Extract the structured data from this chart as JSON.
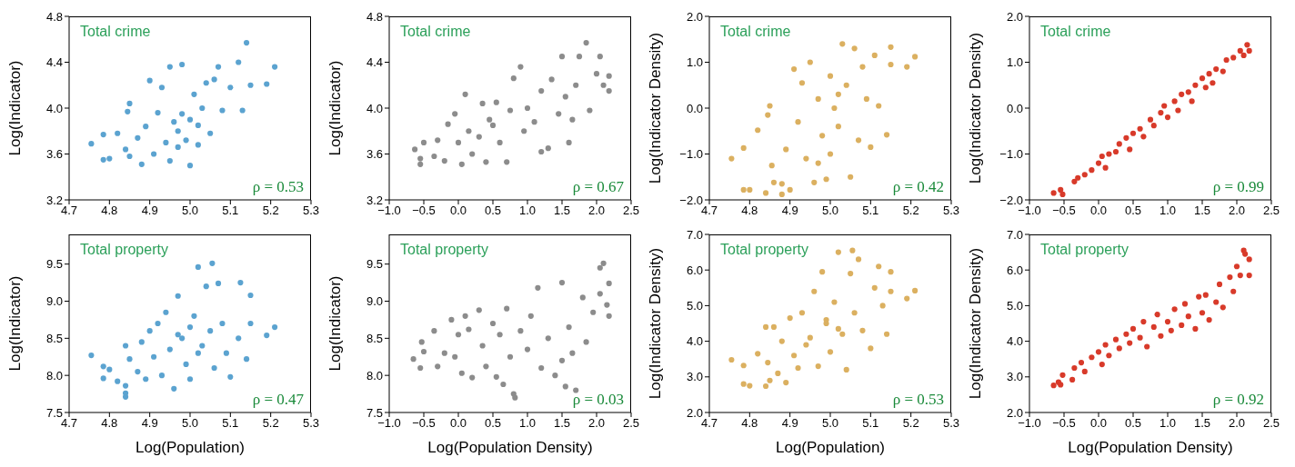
{
  "chart_data": [
    {
      "type": "scatter",
      "ylabel": "Log(Indicator)",
      "annotations": [
        "Total crime",
        "ρ = 0.53"
      ],
      "marker": "circle",
      "xlim": [
        4.7,
        5.3
      ],
      "xticks": [
        {
          "value": 4.7,
          "label": "4.7"
        },
        {
          "value": 4.8,
          "label": "4.8"
        },
        {
          "value": 4.9,
          "label": "4.9"
        },
        {
          "value": 5.0,
          "label": "5.0"
        },
        {
          "value": 5.1,
          "label": "5.1"
        },
        {
          "value": 5.2,
          "label": "5.2"
        },
        {
          "value": 5.3,
          "label": "5.3"
        }
      ],
      "ylim": [
        3.2,
        4.8
      ],
      "yticks": [
        {
          "value": 3.2,
          "label": "3.2"
        },
        {
          "value": 3.6,
          "label": "3.6"
        },
        {
          "value": 4.0,
          "label": "4.0"
        },
        {
          "value": 4.4,
          "label": "4.4"
        },
        {
          "value": 4.8,
          "label": "4.8"
        }
      ],
      "series": [
        {
          "color": "#5ba3d0",
          "x": [
            4.755,
            4.785,
            4.785,
            4.8,
            4.82,
            4.84,
            4.845,
            4.85,
            4.85,
            4.87,
            4.88,
            4.89,
            4.9,
            4.91,
            4.92,
            4.93,
            4.94,
            4.95,
            4.95,
            4.96,
            4.97,
            4.98,
            4.98,
            4.99,
            5.0,
            5.0,
            5.01,
            5.02,
            5.03,
            5.04,
            5.05,
            5.06,
            5.07,
            5.08,
            5.1,
            5.12,
            5.14,
            5.15,
            5.19,
            5.21,
            5.13,
            4.97,
            5.02
          ],
          "values": [
            3.69,
            3.77,
            3.55,
            3.56,
            3.78,
            3.64,
            3.97,
            4.04,
            3.58,
            3.74,
            3.51,
            3.84,
            4.24,
            3.6,
            3.96,
            4.18,
            3.7,
            3.54,
            4.36,
            3.88,
            3.8,
            3.95,
            4.38,
            3.72,
            3.5,
            3.9,
            4.12,
            3.85,
            4.0,
            4.22,
            3.78,
            4.25,
            4.36,
            3.98,
            4.18,
            4.4,
            4.57,
            4.2,
            4.21,
            4.36,
            3.98,
            3.66,
            3.68
          ]
        }
      ]
    },
    {
      "type": "scatter",
      "ylabel": "Log(Indicator)",
      "annotations": [
        "Total crime",
        "ρ = 0.67"
      ],
      "marker": "circle",
      "xlim": [
        -1.0,
        2.5
      ],
      "xticks": [
        {
          "value": -1.0,
          "label": "−1.0"
        },
        {
          "value": -0.5,
          "label": "−0.5"
        },
        {
          "value": 0.0,
          "label": "0.0"
        },
        {
          "value": 0.5,
          "label": "0.5"
        },
        {
          "value": 1.0,
          "label": "1.0"
        },
        {
          "value": 1.5,
          "label": "1.5"
        },
        {
          "value": 2.0,
          "label": "2.0"
        },
        {
          "value": 2.5,
          "label": "2.5"
        }
      ],
      "ylim": [
        3.2,
        4.8
      ],
      "yticks": [
        {
          "value": 3.2,
          "label": "3.2"
        },
        {
          "value": 3.6,
          "label": "3.6"
        },
        {
          "value": 4.0,
          "label": "4.0"
        },
        {
          "value": 4.4,
          "label": "4.4"
        },
        {
          "value": 4.8,
          "label": "4.8"
        }
      ],
      "series": [
        {
          "color": "#8c8c8c",
          "x": [
            -0.63,
            -0.55,
            -0.55,
            -0.5,
            -0.35,
            -0.3,
            -0.2,
            -0.15,
            -0.05,
            0.0,
            0.05,
            0.1,
            0.15,
            0.2,
            0.3,
            0.35,
            0.4,
            0.5,
            0.55,
            0.6,
            0.7,
            0.75,
            0.8,
            0.9,
            0.95,
            1.0,
            1.1,
            1.2,
            1.3,
            1.35,
            1.45,
            1.5,
            1.55,
            1.6,
            1.65,
            1.7,
            1.75,
            1.85,
            1.9,
            2.0,
            2.05,
            2.1,
            2.18,
            2.18,
            1.2,
            0.45
          ],
          "values": [
            3.64,
            3.51,
            3.56,
            3.7,
            3.58,
            3.72,
            3.54,
            3.86,
            3.95,
            3.7,
            3.51,
            4.12,
            3.8,
            3.6,
            3.75,
            4.04,
            3.53,
            3.85,
            4.05,
            3.7,
            3.53,
            3.98,
            4.26,
            4.36,
            3.8,
            4.0,
            3.88,
            4.15,
            3.65,
            4.25,
            3.95,
            4.45,
            4.1,
            3.7,
            3.9,
            4.2,
            4.45,
            4.57,
            3.98,
            4.3,
            4.45,
            4.2,
            4.28,
            4.15,
            3.62,
            3.9
          ]
        }
      ]
    },
    {
      "type": "scatter",
      "ylabel": "Log(Indicator Density)",
      "annotations": [
        "Total crime",
        "ρ = 0.42"
      ],
      "marker": "circle",
      "xlim": [
        4.7,
        5.3
      ],
      "xticks": [
        {
          "value": 4.7,
          "label": "4.7"
        },
        {
          "value": 4.8,
          "label": "4.8"
        },
        {
          "value": 4.9,
          "label": "4.9"
        },
        {
          "value": 5.0,
          "label": "5.0"
        },
        {
          "value": 5.1,
          "label": "5.1"
        },
        {
          "value": 5.2,
          "label": "5.2"
        },
        {
          "value": 5.3,
          "label": "5.3"
        }
      ],
      "ylim": [
        -2.0,
        2.0
      ],
      "yticks": [
        {
          "value": -2.0,
          "label": "−2.0"
        },
        {
          "value": -1.0,
          "label": "−1.0"
        },
        {
          "value": 0.0,
          "label": "0.0"
        },
        {
          "value": 1.0,
          "label": "1.0"
        },
        {
          "value": 2.0,
          "label": "2.0"
        }
      ],
      "series": [
        {
          "color": "#dbb060",
          "x": [
            4.755,
            4.785,
            4.785,
            4.8,
            4.82,
            4.84,
            4.845,
            4.85,
            4.855,
            4.86,
            4.88,
            4.88,
            4.89,
            4.9,
            4.91,
            4.92,
            4.93,
            4.94,
            4.95,
            4.96,
            4.97,
            4.98,
            4.99,
            5.0,
            5.0,
            5.01,
            5.02,
            5.03,
            5.04,
            5.05,
            5.06,
            5.07,
            5.08,
            5.09,
            5.1,
            5.11,
            5.12,
            5.14,
            5.15,
            5.15,
            5.19,
            5.21,
            4.97,
            5.02
          ],
          "values": [
            -1.1,
            -0.87,
            -1.78,
            -1.78,
            -0.48,
            -1.85,
            -0.15,
            0.05,
            -1.25,
            -1.62,
            -1.65,
            -1.88,
            -0.9,
            -1.78,
            0.85,
            -0.3,
            0.55,
            -1.1,
            1.0,
            -1.62,
            0.2,
            -0.6,
            -1.55,
            0.7,
            -1.0,
            0.0,
            -0.4,
            1.4,
            0.5,
            -1.5,
            1.3,
            -0.7,
            0.9,
            0.2,
            -0.85,
            1.15,
            0.05,
            -0.58,
            1.33,
            0.95,
            0.9,
            1.12,
            -1.2,
            0.3
          ]
        }
      ]
    },
    {
      "type": "scatter",
      "ylabel": "Log(Indicator Density)",
      "annotations": [
        "Total crime",
        "ρ = 0.99"
      ],
      "marker": "circle",
      "xlim": [
        -1.0,
        2.5
      ],
      "xticks": [
        {
          "value": -1.0,
          "label": "−1.0"
        },
        {
          "value": -0.5,
          "label": "−0.5"
        },
        {
          "value": 0.0,
          "label": "0.0"
        },
        {
          "value": 0.5,
          "label": "0.5"
        },
        {
          "value": 1.0,
          "label": "1.0"
        },
        {
          "value": 1.5,
          "label": "1.5"
        },
        {
          "value": 2.0,
          "label": "2.0"
        },
        {
          "value": 2.5,
          "label": "2.5"
        }
      ],
      "ylim": [
        -2.0,
        2.0
      ],
      "yticks": [
        {
          "value": -2.0,
          "label": "−2.0"
        },
        {
          "value": -1.0,
          "label": "−1.0"
        },
        {
          "value": 0.0,
          "label": "0.0"
        },
        {
          "value": 1.0,
          "label": "1.0"
        },
        {
          "value": 2.0,
          "label": "2.0"
        }
      ],
      "series": [
        {
          "color": "#d83a2a",
          "x": [
            -0.65,
            -0.55,
            -0.52,
            -0.35,
            -0.3,
            -0.2,
            -0.1,
            0.0,
            0.05,
            0.1,
            0.15,
            0.25,
            0.3,
            0.4,
            0.45,
            0.5,
            0.6,
            0.65,
            0.75,
            0.8,
            0.9,
            0.95,
            1.0,
            1.1,
            1.15,
            1.2,
            1.3,
            1.35,
            1.4,
            1.5,
            1.55,
            1.6,
            1.65,
            1.7,
            1.8,
            1.85,
            1.95,
            2.05,
            2.1,
            2.15,
            2.18
          ],
          "values": [
            -1.85,
            -1.78,
            -1.88,
            -1.6,
            -1.52,
            -1.45,
            -1.35,
            -1.2,
            -1.05,
            -1.3,
            -1.0,
            -0.95,
            -0.78,
            -0.65,
            -0.9,
            -0.55,
            -0.45,
            -0.62,
            -0.25,
            -0.38,
            -0.1,
            0.05,
            -0.2,
            0.15,
            -0.05,
            0.3,
            0.35,
            0.15,
            0.5,
            0.65,
            0.45,
            0.75,
            0.55,
            0.85,
            0.8,
            1.05,
            1.1,
            1.25,
            1.15,
            1.38,
            1.25
          ]
        }
      ]
    },
    {
      "type": "scatter",
      "xlabel": "Log(Population)",
      "ylabel": "Log(Indicator)",
      "annotations": [
        "Total property",
        "ρ = 0.47"
      ],
      "marker": "circle",
      "xlim": [
        4.7,
        5.3
      ],
      "xticks": [
        {
          "value": 4.7,
          "label": "4.7"
        },
        {
          "value": 4.8,
          "label": "4.8"
        },
        {
          "value": 4.9,
          "label": "4.9"
        },
        {
          "value": 5.0,
          "label": "5.0"
        },
        {
          "value": 5.1,
          "label": "5.1"
        },
        {
          "value": 5.2,
          "label": "5.2"
        },
        {
          "value": 5.3,
          "label": "5.3"
        }
      ],
      "ylim": [
        7.5,
        9.9
      ],
      "yticks": [
        {
          "value": 7.5,
          "label": "7.5"
        },
        {
          "value": 8.0,
          "label": "8.0"
        },
        {
          "value": 8.5,
          "label": "8.5"
        },
        {
          "value": 9.0,
          "label": "9.0"
        },
        {
          "value": 9.5,
          "label": "9.5"
        }
      ],
      "series": [
        {
          "color": "#5ba3d0",
          "x": [
            4.755,
            4.785,
            4.785,
            4.8,
            4.82,
            4.84,
            4.84,
            4.84,
            4.84,
            4.85,
            4.87,
            4.88,
            4.89,
            4.9,
            4.91,
            4.92,
            4.93,
            4.94,
            4.95,
            4.96,
            4.97,
            4.98,
            4.99,
            5.0,
            5.0,
            5.01,
            5.02,
            5.03,
            5.04,
            5.05,
            5.055,
            5.06,
            5.07,
            5.08,
            5.09,
            5.1,
            5.12,
            5.125,
            5.14,
            5.15,
            5.15,
            5.19,
            5.21,
            4.97,
            5.02
          ],
          "values": [
            8.27,
            8.12,
            7.96,
            8.08,
            7.92,
            8.4,
            7.86,
            7.71,
            7.76,
            8.22,
            8.05,
            8.45,
            7.95,
            8.6,
            8.25,
            8.7,
            8.0,
            8.85,
            8.35,
            7.82,
            9.07,
            8.5,
            8.15,
            8.65,
            7.95,
            8.8,
            9.46,
            8.4,
            9.2,
            8.6,
            9.51,
            8.1,
            9.24,
            8.7,
            8.3,
            7.98,
            8.5,
            9.25,
            8.22,
            9.08,
            8.7,
            8.54,
            8.65,
            8.55,
            8.3
          ]
        }
      ]
    },
    {
      "type": "scatter",
      "xlabel": "Log(Population Density)",
      "ylabel": "Log(Indicator)",
      "annotations": [
        "Total property",
        "ρ = 0.03"
      ],
      "marker": "circle",
      "xlim": [
        -1.0,
        2.5
      ],
      "xticks": [
        {
          "value": -1.0,
          "label": "−1.0"
        },
        {
          "value": -0.5,
          "label": "−0.5"
        },
        {
          "value": 0.0,
          "label": "0.0"
        },
        {
          "value": 0.5,
          "label": "0.5"
        },
        {
          "value": 1.0,
          "label": "1.0"
        },
        {
          "value": 1.5,
          "label": "1.5"
        },
        {
          "value": 2.0,
          "label": "2.0"
        },
        {
          "value": 2.5,
          "label": "2.5"
        }
      ],
      "ylim": [
        7.5,
        9.9
      ],
      "yticks": [
        {
          "value": 7.5,
          "label": "7.5"
        },
        {
          "value": 8.0,
          "label": "8.0"
        },
        {
          "value": 8.5,
          "label": "8.5"
        },
        {
          "value": 9.0,
          "label": "9.0"
        },
        {
          "value": 9.5,
          "label": "9.5"
        }
      ],
      "series": [
        {
          "color": "#8c8c8c",
          "x": [
            -0.65,
            -0.55,
            -0.53,
            -0.5,
            -0.35,
            -0.3,
            -0.2,
            -0.1,
            -0.05,
            0.0,
            0.05,
            0.1,
            0.15,
            0.2,
            0.3,
            0.35,
            0.4,
            0.5,
            0.55,
            0.6,
            0.65,
            0.7,
            0.75,
            0.8,
            0.82,
            0.9,
            1.0,
            1.05,
            1.15,
            1.2,
            1.3,
            1.4,
            1.5,
            1.5,
            1.55,
            1.6,
            1.65,
            1.7,
            1.8,
            1.85,
            1.95,
            2.05,
            2.1,
            2.05,
            2.15,
            2.18,
            2.18
          ],
          "values": [
            8.22,
            8.1,
            8.45,
            8.32,
            8.6,
            8.12,
            8.3,
            8.75,
            8.25,
            8.55,
            8.03,
            8.8,
            8.62,
            7.97,
            8.88,
            8.4,
            8.12,
            8.7,
            7.98,
            8.55,
            7.88,
            8.9,
            8.25,
            7.75,
            7.7,
            8.6,
            8.35,
            8.8,
            9.18,
            8.1,
            8.5,
            8.0,
            9.25,
            8.2,
            7.85,
            8.65,
            8.3,
            7.8,
            9.05,
            8.45,
            8.85,
            9.45,
            9.51,
            9.1,
            8.95,
            9.24,
            8.8
          ]
        }
      ]
    },
    {
      "type": "scatter",
      "xlabel": "Log(Population)",
      "ylabel": "Log(Indicator Density)",
      "annotations": [
        "Total property",
        "ρ = 0.53"
      ],
      "marker": "circle",
      "xlim": [
        4.7,
        5.3
      ],
      "xticks": [
        {
          "value": 4.7,
          "label": "4.7"
        },
        {
          "value": 4.8,
          "label": "4.8"
        },
        {
          "value": 4.9,
          "label": "4.9"
        },
        {
          "value": 5.0,
          "label": "5.0"
        },
        {
          "value": 5.1,
          "label": "5.1"
        },
        {
          "value": 5.2,
          "label": "5.2"
        },
        {
          "value": 5.3,
          "label": "5.3"
        }
      ],
      "ylim": [
        2.0,
        7.0
      ],
      "yticks": [
        {
          "value": 2.0,
          "label": "2.0"
        },
        {
          "value": 3.0,
          "label": "3.0"
        },
        {
          "value": 4.0,
          "label": "4.0"
        },
        {
          "value": 5.0,
          "label": "5.0"
        },
        {
          "value": 6.0,
          "label": "6.0"
        },
        {
          "value": 7.0,
          "label": "7.0"
        }
      ],
      "series": [
        {
          "color": "#dbb060",
          "x": [
            4.755,
            4.785,
            4.785,
            4.8,
            4.82,
            4.84,
            4.84,
            4.845,
            4.85,
            4.86,
            4.87,
            4.88,
            4.89,
            4.9,
            4.91,
            4.92,
            4.93,
            4.94,
            4.95,
            4.96,
            4.97,
            4.98,
            4.99,
            5.0,
            5.01,
            5.02,
            5.03,
            5.04,
            5.05,
            5.055,
            5.06,
            5.07,
            5.08,
            5.1,
            5.11,
            5.12,
            5.13,
            5.14,
            5.15,
            5.15,
            5.19,
            5.21,
            4.99,
            5.02
          ],
          "values": [
            3.48,
            3.32,
            2.8,
            2.75,
            3.65,
            2.74,
            4.4,
            3.4,
            2.9,
            4.4,
            3.1,
            4.0,
            2.84,
            4.65,
            3.6,
            3.25,
            4.8,
            3.9,
            4.1,
            5.4,
            3.3,
            5.95,
            4.5,
            3.7,
            5.1,
            6.5,
            4.2,
            3.2,
            5.9,
            6.55,
            4.8,
            6.3,
            4.3,
            3.8,
            5.5,
            6.1,
            5.0,
            4.2,
            5.95,
            5.4,
            5.2,
            5.42,
            4.6,
            4.35
          ]
        }
      ]
    },
    {
      "type": "scatter",
      "xlabel": "Log(Population Density)",
      "ylabel": "Log(Indicator Density)",
      "annotations": [
        "Total property",
        "ρ = 0.92"
      ],
      "marker": "circle",
      "xlim": [
        -1.0,
        2.5
      ],
      "xticks": [
        {
          "value": -1.0,
          "label": "−1.0"
        },
        {
          "value": -0.5,
          "label": "−0.5"
        },
        {
          "value": 0.0,
          "label": "0.0"
        },
        {
          "value": 0.5,
          "label": "0.5"
        },
        {
          "value": 1.0,
          "label": "1.0"
        },
        {
          "value": 1.5,
          "label": "1.5"
        },
        {
          "value": 2.0,
          "label": "2.0"
        },
        {
          "value": 2.5,
          "label": "2.5"
        }
      ],
      "ylim": [
        2.0,
        7.0
      ],
      "yticks": [
        {
          "value": 2.0,
          "label": "2.0"
        },
        {
          "value": 3.0,
          "label": "3.0"
        },
        {
          "value": 4.0,
          "label": "4.0"
        },
        {
          "value": 5.0,
          "label": "5.0"
        },
        {
          "value": 6.0,
          "label": "6.0"
        },
        {
          "value": 7.0,
          "label": "7.0"
        }
      ],
      "series": [
        {
          "color": "#d83a2a",
          "x": [
            -0.65,
            -0.58,
            -0.55,
            -0.52,
            -0.38,
            -0.35,
            -0.25,
            -0.2,
            -0.1,
            0.0,
            0.05,
            0.1,
            0.15,
            0.25,
            0.3,
            0.4,
            0.45,
            0.5,
            0.6,
            0.65,
            0.7,
            0.8,
            0.85,
            0.9,
            1.0,
            1.05,
            1.1,
            1.2,
            1.25,
            1.3,
            1.4,
            1.45,
            1.5,
            1.55,
            1.6,
            1.7,
            1.75,
            1.8,
            1.9,
            1.95,
            2.0,
            2.05,
            2.1,
            2.12,
            2.18,
            2.18
          ],
          "values": [
            2.76,
            2.85,
            2.78,
            3.05,
            2.92,
            3.25,
            3.4,
            3.15,
            3.55,
            3.7,
            3.35,
            3.9,
            3.6,
            4.05,
            3.8,
            4.2,
            3.95,
            4.35,
            4.1,
            4.55,
            3.85,
            4.4,
            4.75,
            4.15,
            4.55,
            4.3,
            4.9,
            4.45,
            5.05,
            4.7,
            4.35,
            5.25,
            4.8,
            5.3,
            4.6,
            5.1,
            5.6,
            4.95,
            5.8,
            5.4,
            6.1,
            5.85,
            6.55,
            6.45,
            6.3,
            5.85
          ]
        }
      ]
    }
  ]
}
